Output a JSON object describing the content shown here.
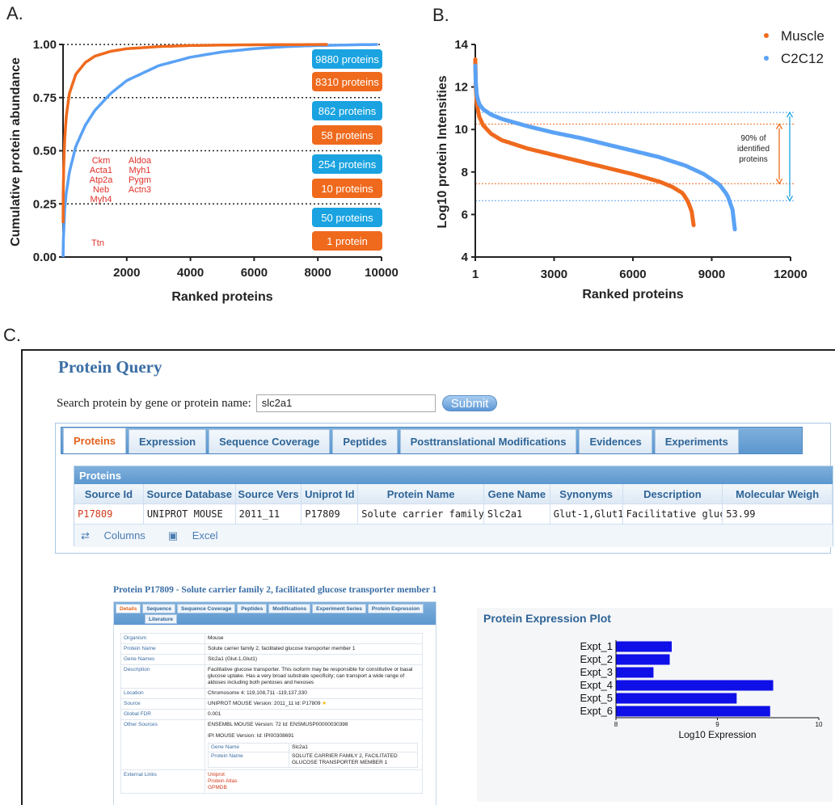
{
  "panel_labels": {
    "a": "A.",
    "b": "B.",
    "c": "C."
  },
  "chart_data": [
    {
      "type": "line",
      "title": "",
      "xlabel": "Ranked proteins",
      "ylabel": "Cumulative protein abundance",
      "xlim": [
        0,
        10000
      ],
      "ylim": [
        0,
        1.0
      ],
      "x_ticks": [
        "2000",
        "4000",
        "6000",
        "8000",
        "10000"
      ],
      "y_ticks": [
        "0.00",
        "0.25",
        "0.50",
        "0.75",
        "1.00"
      ],
      "reference_lines_y": [
        0.25,
        0.5,
        0.75,
        1.0
      ],
      "series": [
        {
          "color": "#ef6a1d",
          "x": [
            1,
            5,
            20,
            50,
            100,
            200,
            400,
            700,
            1000,
            1500,
            2000,
            3000,
            4000,
            5500,
            7000,
            8310
          ],
          "y": [
            0.16,
            0.28,
            0.42,
            0.55,
            0.66,
            0.77,
            0.86,
            0.915,
            0.945,
            0.968,
            0.98,
            0.99,
            0.995,
            0.998,
            0.999,
            1.0
          ]
        },
        {
          "color": "#5aa2f5",
          "x": [
            1,
            10,
            50,
            100,
            200,
            400,
            700,
            1000,
            1500,
            2000,
            3000,
            4000,
            5000,
            6000,
            7000,
            8000,
            9000,
            9880
          ],
          "y": [
            0.0,
            0.08,
            0.22,
            0.3,
            0.4,
            0.52,
            0.62,
            0.69,
            0.77,
            0.83,
            0.9,
            0.94,
            0.965,
            0.98,
            0.99,
            0.995,
            0.998,
            1.0
          ]
        }
      ],
      "count_badges": [
        {
          "text": "9880 proteins",
          "color": "#1aa3e0"
        },
        {
          "text": "8310 proteins",
          "color": "#ef6a1d"
        },
        {
          "text": "862 proteins",
          "color": "#1aa3e0"
        },
        {
          "text": "58 proteins",
          "color": "#ef6a1d"
        },
        {
          "text": "254 proteins",
          "color": "#1aa3e0"
        },
        {
          "text": "10 proteins",
          "color": "#ef6a1d"
        },
        {
          "text": "50 proteins",
          "color": "#1aa3e0"
        },
        {
          "text": "1 protein",
          "color": "#ef6a1d"
        }
      ],
      "gene_annotations": {
        "col1": [
          "Ckm",
          "Acta1",
          "Atp2a",
          "Neb",
          "Myh4"
        ],
        "col2": [
          "Aldoa",
          "Myh1",
          "Pygm",
          "Actn3"
        ],
        "single": "Ttn"
      }
    },
    {
      "type": "scatter",
      "title": "",
      "xlabel": "Ranked proteins",
      "ylabel": "Log10  protein Intensities",
      "xlim": [
        1,
        12000
      ],
      "ylim": [
        4,
        14
      ],
      "x_ticks": [
        "1",
        "3000",
        "6000",
        "9000",
        "12000"
      ],
      "y_ticks": [
        "4",
        "6",
        "8",
        "10",
        "12",
        "14"
      ],
      "legend": "top-right",
      "series": [
        {
          "name": "Muscle",
          "color": "#ef6a1d",
          "x": [
            1,
            20,
            60,
            150,
            300,
            600,
            1000,
            2000,
            3000,
            4000,
            5000,
            6000,
            7000,
            7500,
            7900,
            8100,
            8250,
            8310
          ],
          "y": [
            13.3,
            12.0,
            11.2,
            10.6,
            10.2,
            9.8,
            9.5,
            9.1,
            8.8,
            8.5,
            8.2,
            7.9,
            7.55,
            7.3,
            7.0,
            6.6,
            6.1,
            5.5
          ]
        },
        {
          "name": "C2C12",
          "color": "#5aa2f5",
          "x": [
            1,
            20,
            60,
            150,
            300,
            600,
            1000,
            2000,
            3000,
            4000,
            5000,
            6000,
            7000,
            8000,
            8700,
            9300,
            9600,
            9800,
            9880
          ],
          "y": [
            13.0,
            12.2,
            11.6,
            11.2,
            10.95,
            10.7,
            10.5,
            10.15,
            9.85,
            9.6,
            9.3,
            9.0,
            8.7,
            8.3,
            7.9,
            7.4,
            6.9,
            6.2,
            5.3
          ]
        }
      ],
      "reference_lines_y": [
        {
          "y": 10.8,
          "color": "#5aa2f5"
        },
        {
          "y": 10.25,
          "color": "#ef6a1d"
        },
        {
          "y": 7.45,
          "color": "#ef6a1d"
        },
        {
          "y": 6.65,
          "color": "#5aa2f5"
        }
      ],
      "annotation": [
        "90% of",
        "identified",
        "proteins"
      ]
    },
    {
      "type": "bar",
      "orientation": "horizontal",
      "title": "Protein Expression Plot",
      "xlabel": "Log10 Expression",
      "categories": [
        "Expt_1",
        "Expt_2",
        "Expt_3",
        "Expt_4",
        "Expt_5",
        "Expt_6"
      ],
      "values": [
        8.55,
        8.53,
        8.37,
        9.55,
        9.19,
        9.52
      ],
      "xlim": [
        8,
        10
      ],
      "x_ticks": [
        "8",
        "9",
        "10"
      ],
      "color": "#0f0fe8"
    }
  ],
  "query": {
    "title": "Protein Query",
    "search_label": "Search protein by gene or protein name:",
    "search_value": "slc2a1",
    "submit_label": "Submit",
    "tabs": [
      "Proteins",
      "Expression",
      "Sequence Coverage",
      "Peptides",
      "Posttranslational Modifications",
      "Evidences",
      "Experiments"
    ],
    "grid_title": "Proteins",
    "columns": [
      "Source Id",
      "Source Database",
      "Source Vers",
      "Uniprot Id",
      "Protein Name",
      "Gene Name",
      "Synonyms",
      "Description",
      "Molecular Weigh"
    ],
    "row": [
      "P17809",
      "UNIPROT MOUSE",
      "2011_11",
      "P17809",
      "Solute carrier family 2, fa",
      "Slc2a1",
      "Glut-1,Glut1",
      "Facilitative glucose",
      "53.99"
    ],
    "footer_columns": "Columns",
    "footer_excel": "Excel"
  },
  "detail": {
    "title": "Protein P17809 - Solute carrier family 2, facilitated glucose transporter member 1",
    "tabs": [
      "Details",
      "Sequence",
      "Sequence Coverage",
      "Peptides",
      "Modifications",
      "Experiment Series",
      "Protein Expression",
      "Literature"
    ],
    "organism_k": "Organism",
    "organism_v": "Mouse",
    "pname_k": "Protein Name",
    "pname_v": "Solute carrier family 2, facilitated glucose transporter member 1",
    "gnames_k": "Gene Names",
    "gnames_v": "Slc2a1 (Glut-1,Glut1)",
    "desc_k": "Description",
    "desc_v": "Facilitative glucose transporter. This isoform may be responsible for constitutive or basal glucose uptake. Has a very broad substrate specificity; can transport a wide range of aldoses including both pentoses and hexoses",
    "loc_k": "Location",
    "loc_v": "Chromosome 4: 119,108,711 -119,137,330",
    "src_k": "Source",
    "src_v": "UNIPROT MOUSE Version: 2011_11 Id: P17809",
    "fdr_k": "Global FDR",
    "fdr_v": "0.001",
    "other_k": "Other Sources",
    "other_v1": "ENSEMBL MOUSE Version: 72 Id: ENSMUSP00000030398",
    "other_v2": "IPI MOUSE Version: Id: IPI00308691",
    "sub_gene_k": "Gene Name",
    "sub_gene_v": "Slc2a1",
    "sub_prot_k": "Protein Name",
    "sub_prot_v": "SOLUTE CARRIER FAMILY 2, FACILITATED GLUCOSE TRANSPORTER MEMBER 1",
    "ext_k": "External Links",
    "ext_links": [
      "Uniprot",
      "Protein Atlas",
      "GPMDB"
    ]
  }
}
